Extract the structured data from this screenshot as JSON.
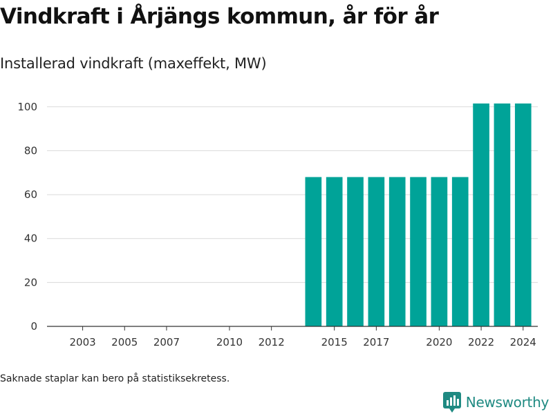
{
  "title": "Vindkraft i Årjängs kommun, år för år",
  "subtitle": "Installerad vindkraft (maxeffekt, MW)",
  "footnote": "Saknade staplar kan bero på statistiksekretess.",
  "brand": {
    "name": "Newsworthy",
    "icon": "newsworthy-logo-icon",
    "color": "#1f8a82"
  },
  "chart_data": {
    "type": "bar",
    "title": "",
    "xlabel": "",
    "ylabel": "",
    "bar_color": "#00a398",
    "categories": [
      2002,
      2003,
      2004,
      2005,
      2006,
      2007,
      2008,
      2009,
      2010,
      2011,
      2012,
      2013,
      2014,
      2015,
      2016,
      2017,
      2018,
      2019,
      2020,
      2021,
      2022,
      2023,
      2024
    ],
    "values": [
      null,
      null,
      null,
      null,
      null,
      null,
      null,
      null,
      null,
      null,
      null,
      null,
      68,
      68,
      68,
      68,
      68,
      68,
      68,
      68,
      101.5,
      101.5,
      101.5
    ],
    "x_tick_labels": [
      "2003",
      "2005",
      "2007",
      "2010",
      "2012",
      "2015",
      "2017",
      "2020",
      "2022",
      "2024"
    ],
    "y_ticks": [
      0,
      20,
      40,
      60,
      80,
      100
    ],
    "ylim": [
      0,
      101.5
    ],
    "grid": true,
    "legend": "none"
  }
}
